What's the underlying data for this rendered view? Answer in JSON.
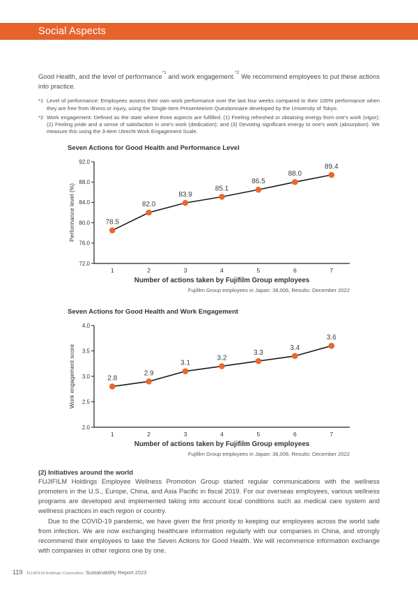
{
  "header": {
    "title": "Social Aspects"
  },
  "intro": {
    "t1": "Good Health, and the level of performance",
    "s1": "*1",
    "t2": " and work engagement.",
    "s2": "*2",
    "t3": " We recommend employees to put these actions into practice."
  },
  "footnotes": [
    {
      "marker": "*1",
      "text": "Level of performance: Employees assess their own work performance over the last four weeks compared to their 100% performance when they are free from illness or injury, using the Single-Item Presenteeism Questionnaire developed by the University of Tokyo."
    },
    {
      "marker": "*2",
      "text": "Work engagement: Defined as the state where three aspects are fulfilled. (1) Feeling refreshed or obtaining energy from one's work (vigor); (2) Feeling pride and a sense of satisfaction in one's work (dedication); and (3) Devoting significant energy to one's work (absorption). We measure this using the 3-item Utrecht Work Engagement Scale."
    }
  ],
  "chart_data": [
    {
      "type": "line",
      "title": "Seven Actions for Good Health and Performance Level",
      "x": [
        1,
        2,
        3,
        4,
        5,
        6,
        7
      ],
      "values": [
        78.5,
        82.0,
        83.9,
        85.1,
        86.5,
        88.0,
        89.4
      ],
      "labels": [
        "78.5",
        "82.0",
        "83.9",
        "85.1",
        "86.5",
        "88.0",
        "89.4"
      ],
      "xlabel": "Number of actions taken by Fujifilm Group employees",
      "ylabel": "Performance level (%)",
      "ylim": [
        72.0,
        92.0
      ],
      "yticks": [
        "92.0",
        "88.0",
        "84.0",
        "80.0",
        "76.0",
        "72.0"
      ],
      "grid": false,
      "legend": null,
      "caption": "Fujifilm Group employees in Japan: 38,006, Results: December 2022",
      "marker_color": "#E8692B",
      "line_color": "#1A1A1A"
    },
    {
      "type": "line",
      "title": "Seven Actions for Good Health and Work Engagement",
      "x": [
        1,
        2,
        3,
        4,
        5,
        6,
        7
      ],
      "values": [
        2.8,
        2.9,
        3.1,
        3.2,
        3.3,
        3.4,
        3.6
      ],
      "labels": [
        "2.8",
        "2.9",
        "3.1",
        "3.2",
        "3.3",
        "3.4",
        "3.6"
      ],
      "xlabel": "Number of actions taken by Fujifilm Group employees",
      "ylabel": "Work engagement score",
      "ylim": [
        2.0,
        4.0
      ],
      "yticks": [
        "4.0",
        "3.5",
        "3.0",
        "2.5",
        "2.0"
      ],
      "grid": false,
      "legend": null,
      "caption": "Fujifilm Group employees in Japan: 38,006, Results: December 2022",
      "marker_color": "#E8692B",
      "line_color": "#1A1A1A"
    }
  ],
  "section2": {
    "heading": "(2) Initiatives around the world",
    "paragraphs": [
      "FUJIFILM Holdings Employee Wellness Promotion Group started regular communications with the wellness promoters in the U.S., Europe, China, and Asia Pacific in fiscal 2019. For our overseas employees, various wellness programs are developed and implemented taking into account local conditions such as medical care system and wellness practices in each region or country.",
      "Due to the COVID-19 pandemic, we have given the first priority to keeping our employees across the world safe from infection. We are now exchanging healthcare information regularly with our companies in China, and strongly recommend their employees to take the Seven Actions for Good Health. We will recommence information exchange with companies in other regions one by one."
    ]
  },
  "footer": {
    "page_number": "119",
    "publisher": "FUJIFILM Holdings Corporation",
    "report": "Sustainability Report 2023"
  },
  "colors": {
    "accent_orange": "#E8632B",
    "marker_orange": "#E8692B",
    "header_text": "#FFFFFF"
  }
}
